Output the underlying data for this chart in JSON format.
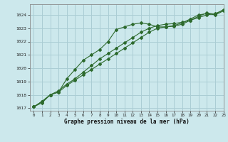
{
  "title": "Graphe pression niveau de la mer (hPa)",
  "background_color": "#cce8ec",
  "grid_color": "#aacdd4",
  "line_color": "#2d6a2d",
  "xlim": [
    -0.5,
    23
  ],
  "ylim": [
    1016.8,
    1024.8
  ],
  "yticks": [
    1017,
    1018,
    1019,
    1020,
    1021,
    1022,
    1023,
    1024
  ],
  "xticks": [
    0,
    1,
    2,
    3,
    4,
    5,
    6,
    7,
    8,
    9,
    10,
    11,
    12,
    13,
    14,
    15,
    16,
    17,
    18,
    19,
    20,
    21,
    22,
    23
  ],
  "series1": [
    1017.1,
    1017.4,
    1018.0,
    1018.2,
    1019.2,
    1019.9,
    1020.6,
    1021.0,
    1021.4,
    1022.0,
    1022.9,
    1023.1,
    1023.3,
    1023.4,
    1023.3,
    1023.1,
    1023.1,
    1023.2,
    1023.4,
    1023.7,
    1024.0,
    1024.1,
    1024.0,
    1024.3
  ],
  "series2": [
    1017.1,
    1017.5,
    1018.0,
    1018.3,
    1018.8,
    1019.2,
    1019.7,
    1020.2,
    1020.7,
    1021.1,
    1021.5,
    1021.9,
    1022.3,
    1022.7,
    1023.0,
    1023.2,
    1023.3,
    1023.35,
    1023.45,
    1023.6,
    1023.8,
    1024.0,
    1024.1,
    1024.35
  ],
  "series3": [
    1017.1,
    1017.5,
    1018.0,
    1018.2,
    1018.7,
    1019.1,
    1019.5,
    1019.9,
    1020.3,
    1020.7,
    1021.1,
    1021.5,
    1021.9,
    1022.3,
    1022.7,
    1023.0,
    1023.1,
    1023.15,
    1023.3,
    1023.6,
    1023.9,
    1024.15,
    1024.05,
    1024.4
  ]
}
